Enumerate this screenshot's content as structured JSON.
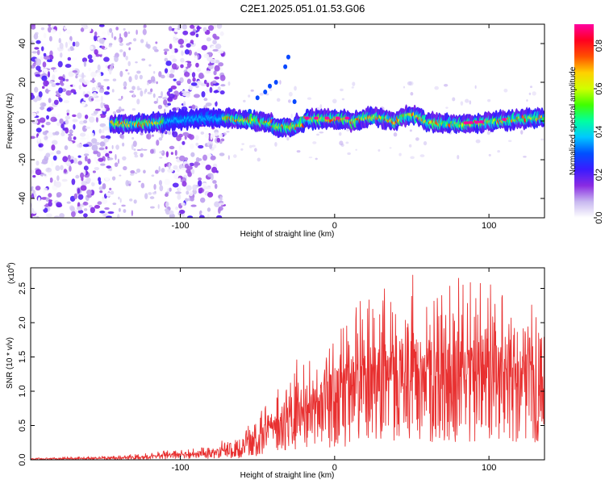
{
  "title": "C2E1.2025.051.01.53.G06",
  "chart_data": [
    {
      "type": "heatmap",
      "name": "spectrogram",
      "xlabel": "Height of straight line (km)",
      "ylabel": "Frequency (Hz)",
      "xlim": [
        -197,
        136
      ],
      "ylim": [
        -50,
        50
      ],
      "xticks": [
        -100,
        0,
        100
      ],
      "yticks": [
        -40,
        -20,
        0,
        20,
        40
      ],
      "colorbar": {
        "label": "Normalized spectral amplitude",
        "range": [
          0.0,
          0.9
        ],
        "ticks": [
          0.0,
          0.2,
          0.4,
          0.6,
          0.8
        ],
        "colormap": [
          "#ffffff",
          "#c8b8f0",
          "#8a2be2",
          "#3a1bff",
          "#0050ff",
          "#00c8ff",
          "#00ffa0",
          "#40ff00",
          "#d0ff00",
          "#ffd000",
          "#ff5000",
          "#ff0020",
          "#ff00a0"
        ]
      },
      "signal_band": {
        "center_frequency_hz": 0,
        "x_range": [
          -145,
          136
        ],
        "noisy_regions_km": [
          [
            -197,
            -145
          ],
          [
            -110,
            -72
          ]
        ],
        "peak_amplitude": 0.9
      }
    },
    {
      "type": "line",
      "name": "snr",
      "xlabel": "Height of straight line (km)",
      "ylabel": "SNR (10 * v/v)",
      "y_multiplier": "(x10",
      "y_multiplier_exp": "4",
      "y_multiplier_close": ")",
      "xlim": [
        -197,
        136
      ],
      "ylim": [
        0,
        2.8
      ],
      "xticks": [
        -100,
        0,
        100
      ],
      "yticks": [
        0.0,
        0.5,
        1.0,
        1.5,
        2.0,
        2.5
      ],
      "color": "#e83030",
      "envelope": {
        "x": [
          -197,
          -150,
          -120,
          -100,
          -80,
          -60,
          -50,
          -40,
          -30,
          -20,
          -10,
          0,
          10,
          20,
          40,
          60,
          80,
          100,
          120,
          136
        ],
        "y_max": [
          0.03,
          0.06,
          0.1,
          0.18,
          0.25,
          0.35,
          0.7,
          0.9,
          1.3,
          1.6,
          1.4,
          1.8,
          2.1,
          2.6,
          2.6,
          2.8,
          2.7,
          2.6,
          2.5,
          2.1
        ],
        "y_mean": [
          0.01,
          0.02,
          0.04,
          0.07,
          0.1,
          0.14,
          0.3,
          0.4,
          0.55,
          0.65,
          0.7,
          0.9,
          1.0,
          1.1,
          1.15,
          1.2,
          1.2,
          1.15,
          1.1,
          1.05
        ]
      }
    }
  ]
}
